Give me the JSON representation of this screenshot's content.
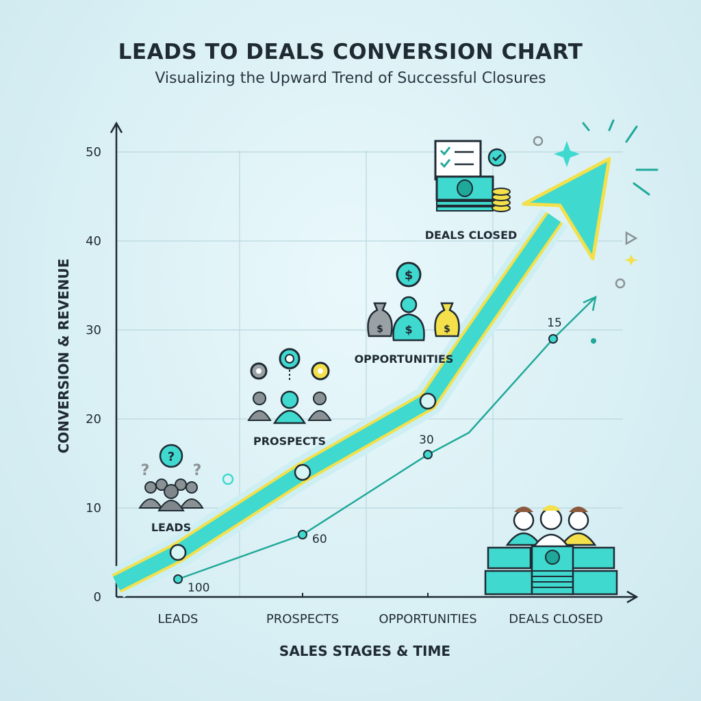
{
  "title": "LEADS TO DEALS CONVERSION CHART",
  "subtitle": "Visualizing the Upward Trend of Successful Closures",
  "chart_data": {
    "type": "line",
    "title": "LEADS TO DEALS CONVERSION CHART",
    "subtitle": "Visualizing the Upward Trend of Successful Closures",
    "xlabel": "SALES STAGES & TIME",
    "ylabel": "CONVERSION & REVENUE",
    "categories": [
      "LEADS",
      "PROSPECTS",
      "OPPORTUNITIES",
      "DEALS CLOSED"
    ],
    "yticks": [
      0,
      10,
      20,
      30,
      40,
      50
    ],
    "ylim": [
      0,
      52
    ],
    "grid": true,
    "stage_labels": [
      "LEADS",
      "PROSPECTS",
      "OPPORTUNITIES",
      "DEALS CLOSED"
    ],
    "series": [
      {
        "values": [
          5,
          14,
          22,
          48
        ],
        "color": "#3fd9cf"
      },
      {
        "values": [
          2,
          7,
          16,
          29
        ],
        "color": "#1fa899",
        "data_labels": [
          "100",
          "60",
          "30",
          "15"
        ]
      }
    ]
  },
  "colors": {
    "teal": "#3fd9cf",
    "dark_teal": "#1fa899",
    "yellow": "#f3e04a",
    "gray": "#8b9296",
    "axis": "#1f2a33"
  },
  "icons": [
    "people-question-icon",
    "people-gears-icon",
    "money-bags-icon",
    "checklist-cash-icon",
    "happy-team-cash-icon"
  ]
}
